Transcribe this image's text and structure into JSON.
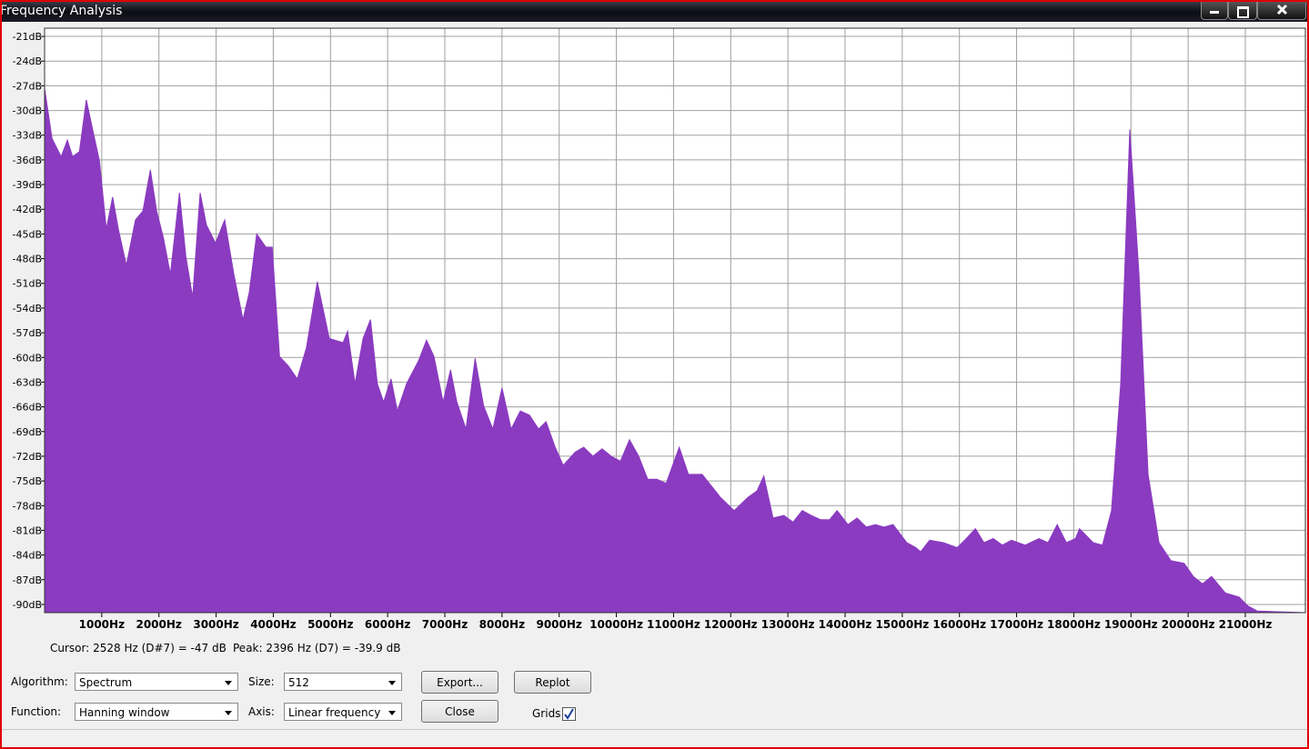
{
  "window": {
    "title": "Frequency Analysis"
  },
  "chart_data": {
    "type": "area",
    "color": "#8a3bc0",
    "grid": true,
    "xlim": [
      0,
      22050
    ],
    "ylim": [
      -91,
      -20
    ],
    "xticks": [
      {
        "value": 1000,
        "label": "1000Hz"
      },
      {
        "value": 2000,
        "label": "2000Hz"
      },
      {
        "value": 3000,
        "label": "3000Hz"
      },
      {
        "value": 4000,
        "label": "4000Hz"
      },
      {
        "value": 5000,
        "label": "5000Hz"
      },
      {
        "value": 6000,
        "label": "6000Hz"
      },
      {
        "value": 7000,
        "label": "7000Hz"
      },
      {
        "value": 8000,
        "label": "8000Hz"
      },
      {
        "value": 9000,
        "label": "9000Hz"
      },
      {
        "value": 10000,
        "label": "10000Hz"
      },
      {
        "value": 11000,
        "label": "11000Hz"
      },
      {
        "value": 12000,
        "label": "12000Hz"
      },
      {
        "value": 13000,
        "label": "13000Hz"
      },
      {
        "value": 14000,
        "label": "14000Hz"
      },
      {
        "value": 15000,
        "label": "15000Hz"
      },
      {
        "value": 16000,
        "label": "16000Hz"
      },
      {
        "value": 17000,
        "label": "17000Hz"
      },
      {
        "value": 18000,
        "label": "18000Hz"
      },
      {
        "value": 19000,
        "label": "19000Hz"
      },
      {
        "value": 20000,
        "label": "20000Hz"
      },
      {
        "value": 21000,
        "label": "21000Hz"
      }
    ],
    "yticks": [
      {
        "value": -21,
        "label": "-21dB"
      },
      {
        "value": -24,
        "label": "-24dB"
      },
      {
        "value": -27,
        "label": "-27dB"
      },
      {
        "value": -30,
        "label": "-30dB"
      },
      {
        "value": -33,
        "label": "-33dB"
      },
      {
        "value": -36,
        "label": "-36dB"
      },
      {
        "value": -39,
        "label": "-39dB"
      },
      {
        "value": -42,
        "label": "-42dB"
      },
      {
        "value": -45,
        "label": "-45dB"
      },
      {
        "value": -48,
        "label": "-48dB"
      },
      {
        "value": -51,
        "label": "-51dB"
      },
      {
        "value": -54,
        "label": "-54dB"
      },
      {
        "value": -57,
        "label": "-57dB"
      },
      {
        "value": -60,
        "label": "-60dB"
      },
      {
        "value": -63,
        "label": "-63dB"
      },
      {
        "value": -66,
        "label": "-66dB"
      },
      {
        "value": -69,
        "label": "-69dB"
      },
      {
        "value": -72,
        "label": "-72dB"
      },
      {
        "value": -75,
        "label": "-75dB"
      },
      {
        "value": -78,
        "label": "-78dB"
      },
      {
        "value": -81,
        "label": "-81dB"
      },
      {
        "value": -84,
        "label": "-84dB"
      },
      {
        "value": -87,
        "label": "-87dB"
      },
      {
        "value": -90,
        "label": "-90dB"
      }
    ],
    "x": [
      0,
      130,
      290,
      400,
      490,
      610,
      730,
      840,
      960,
      1080,
      1190,
      1290,
      1430,
      1590,
      1720,
      1850,
      1960,
      2080,
      2200,
      2360,
      2470,
      2590,
      2720,
      2830,
      2990,
      3150,
      3310,
      3470,
      3580,
      3710,
      3870,
      3980,
      4110,
      4260,
      4420,
      4580,
      4770,
      4980,
      5220,
      5300,
      5430,
      5570,
      5700,
      5820,
      5930,
      6060,
      6170,
      6330,
      6540,
      6680,
      6810,
      6970,
      7100,
      7210,
      7370,
      7530,
      7680,
      7840,
      8000,
      8160,
      8320,
      8480,
      8640,
      8770,
      8930,
      9070,
      9280,
      9430,
      9590,
      9750,
      9910,
      10070,
      10230,
      10390,
      10550,
      10710,
      10870,
      11100,
      11260,
      11500,
      11820,
      12060,
      12300,
      12460,
      12580,
      12740,
      12930,
      13090,
      13250,
      13410,
      13570,
      13730,
      13860,
      14050,
      14210,
      14370,
      14530,
      14680,
      14840,
      15080,
      15240,
      15320,
      15480,
      15720,
      15960,
      16120,
      16280,
      16430,
      16590,
      16750,
      16910,
      17150,
      17390,
      17550,
      17710,
      17870,
      18030,
      18100,
      18340,
      18500,
      18660,
      18820,
      18980,
      19140,
      19300,
      19490,
      19700,
      19930,
      20090,
      20250,
      20410,
      20650,
      20890,
      21050,
      21210,
      22050
    ],
    "values": [
      -27.3,
      -33.4,
      -35.6,
      -33.6,
      -35.6,
      -35.0,
      -28.7,
      -32.3,
      -36.1,
      -44.4,
      -40.5,
      -44.4,
      -48.8,
      -43.3,
      -42.2,
      -37.2,
      -42.2,
      -45.5,
      -49.9,
      -40.0,
      -47.7,
      -52.7,
      -40.0,
      -43.9,
      -46.1,
      -43.3,
      -49.9,
      -55.4,
      -52.1,
      -45.0,
      -46.6,
      -46.6,
      -59.9,
      -61.0,
      -62.6,
      -58.8,
      -50.8,
      -57.7,
      -58.2,
      -56.8,
      -63.2,
      -57.7,
      -55.4,
      -63.2,
      -65.4,
      -62.6,
      -66.5,
      -63.2,
      -60.4,
      -57.9,
      -59.9,
      -65.4,
      -61.5,
      -65.4,
      -68.7,
      -60.1,
      -65.9,
      -68.7,
      -63.7,
      -68.7,
      -66.5,
      -67.0,
      -68.7,
      -67.8,
      -70.9,
      -73.1,
      -71.5,
      -70.9,
      -72.0,
      -71.1,
      -72.0,
      -72.6,
      -70.0,
      -72.0,
      -74.8,
      -74.8,
      -75.3,
      -70.9,
      -74.2,
      -74.2,
      -77.0,
      -78.6,
      -77.0,
      -76.2,
      -74.4,
      -79.5,
      -79.2,
      -80.0,
      -78.6,
      -79.2,
      -79.7,
      -79.7,
      -78.6,
      -80.3,
      -79.5,
      -80.6,
      -80.3,
      -80.6,
      -80.3,
      -82.5,
      -83.1,
      -83.6,
      -82.2,
      -82.5,
      -83.1,
      -82.0,
      -80.8,
      -82.5,
      -82.0,
      -82.8,
      -82.2,
      -82.8,
      -82.0,
      -82.5,
      -80.3,
      -82.5,
      -82.0,
      -80.8,
      -82.5,
      -82.8,
      -78.6,
      -63.2,
      -32.3,
      -49.9,
      -74.2,
      -82.5,
      -84.7,
      -85.0,
      -86.6,
      -87.5,
      -86.6,
      -88.6,
      -89.1,
      -90.2,
      -90.8,
      -91.0
    ]
  },
  "status": {
    "cursor": "Cursor: 2528 Hz (D#7) = -47 dB",
    "peak": "Peak: 2396 Hz (D7) = -39.9 dB"
  },
  "controls": {
    "algorithm_label": "Algorithm:",
    "algorithm": "Spectrum",
    "size_label": "Size:",
    "size": "512",
    "function_label": "Function:",
    "function": "Hanning window",
    "axis_label": "Axis:",
    "axis": "Linear frequency",
    "export": "Export...",
    "replot": "Replot",
    "close": "Close",
    "grids_label": "Grids"
  }
}
